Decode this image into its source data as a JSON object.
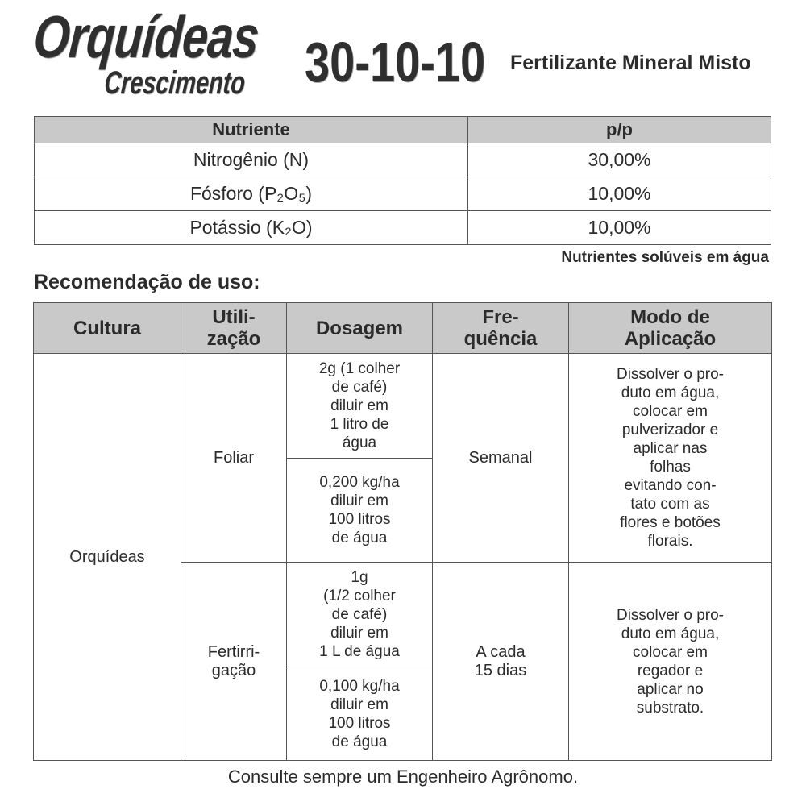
{
  "header": {
    "product": "Orquídeas",
    "subtitle": "Crescimento",
    "formula": "30-10-10",
    "type": "Fertilizante Mineral Misto"
  },
  "nutrients": {
    "headers": [
      "Nutriente",
      "p/p"
    ],
    "rows": [
      {
        "name": "Nitrogênio (N)",
        "value": "30,00%"
      },
      {
        "name": "Fósforo (P₂O₅)",
        "value": "10,00%"
      },
      {
        "name": "Potássio (K₂O)",
        "value": "10,00%"
      }
    ],
    "note": "Nutrientes solúveis em água"
  },
  "usage": {
    "title": "Recomendação de uso:",
    "headers": [
      "Cultura",
      "Utili-\nzação",
      "Dosagem",
      "Fre-\nquência",
      "Modo de\nAplicação"
    ],
    "culture": "Orquídeas",
    "rows": [
      {
        "use": "Foliar",
        "doses": [
          "2g (1 colher\nde café)\ndiluir em\n1 litro de\nágua",
          "0,200 kg/ha\ndiluir em\n100 litros\nde água"
        ],
        "frequency": "Semanal",
        "method": "Dissolver o pro-\nduto em água,\ncolocar em\npulverizador e\naplicar nas\nfolhas\nevitando con-\ntato com as\nflores e botões\nflorais."
      },
      {
        "use": "Fertirri-\ngação",
        "doses": [
          "1g\n(1/2 colher\nde café)\ndiluir em\n1 L de água",
          "0,100 kg/ha\ndiluir em\n100 litros\nde água"
        ],
        "frequency": "A cada\n15 dias",
        "method": "Dissolver o pro-\nduto em água,\ncolocar em\nregador e\naplicar no\nsubstrato."
      }
    ]
  },
  "footer": "Consulte sempre um Engenheiro Agrônomo."
}
